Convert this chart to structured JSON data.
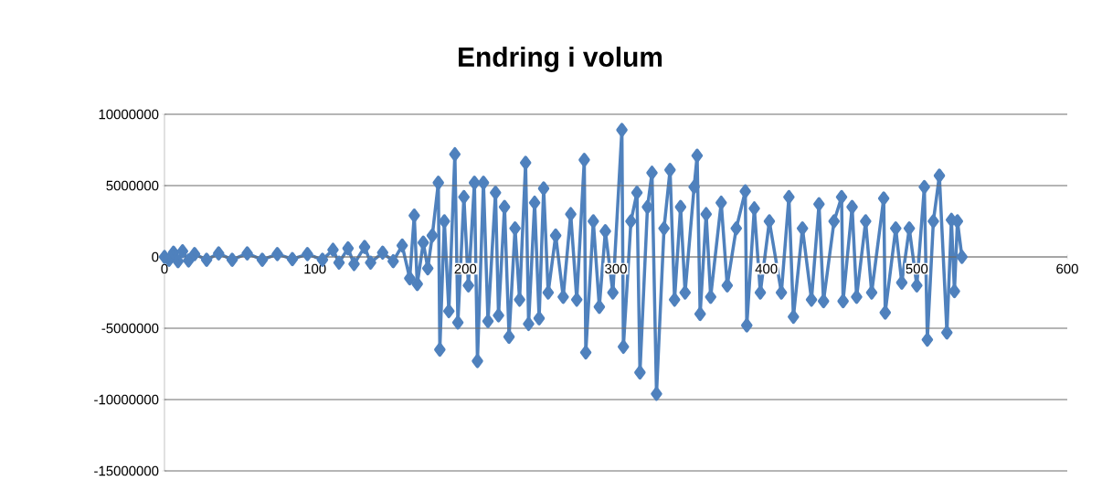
{
  "chart_data": {
    "type": "line",
    "title": "Endring i volum",
    "marker": "diamond",
    "grid": "y",
    "xlim": [
      0,
      600
    ],
    "xticks": [
      0,
      100,
      200,
      300,
      400,
      500,
      600
    ],
    "ylim": [
      -15000000,
      10000000
    ],
    "yticks": [
      -15000000,
      -10000000,
      -5000000,
      0,
      5000000,
      10000000
    ],
    "series": [
      {
        "color": "#4f81bd",
        "x": [
          0,
          3,
          6,
          9,
          12,
          16,
          20,
          28,
          36,
          45,
          55,
          65,
          75,
          85,
          95,
          105,
          112,
          116,
          122,
          126,
          133,
          137,
          145,
          152,
          158,
          163,
          166,
          168,
          172,
          175,
          178,
          182,
          183,
          186,
          189,
          193,
          195,
          199,
          202,
          206,
          208,
          212,
          215,
          220,
          222,
          226,
          229,
          233,
          236,
          240,
          242,
          246,
          249,
          252,
          255,
          260,
          265,
          270,
          274,
          279,
          280,
          285,
          289,
          293,
          298,
          304,
          305,
          310,
          314,
          316,
          321,
          324,
          327,
          332,
          336,
          339,
          343,
          346,
          352,
          354,
          356,
          360,
          363,
          370,
          374,
          380,
          386,
          387,
          392,
          396,
          402,
          410,
          415,
          418,
          424,
          430,
          435,
          438,
          445,
          450,
          451,
          457,
          460,
          466,
          470,
          478,
          479,
          486,
          490,
          495,
          500,
          505,
          507,
          511,
          515,
          520,
          523,
          525,
          527,
          530
        ],
        "values": [
          0,
          -200000,
          300000,
          -300000,
          400000,
          -250000,
          200000,
          -200000,
          250000,
          -200000,
          250000,
          -200000,
          200000,
          -150000,
          200000,
          -200000,
          500000,
          -400000,
          600000,
          -500000,
          700000,
          -400000,
          300000,
          -300000,
          800000,
          -1500000,
          2900000,
          -1900000,
          1000000,
          -800000,
          1500000,
          5200000,
          -6500000,
          2500000,
          -3800000,
          7200000,
          -4600000,
          4200000,
          -2000000,
          5200000,
          -7300000,
          5200000,
          -4500000,
          4500000,
          -4100000,
          3500000,
          -5600000,
          2000000,
          -3000000,
          6600000,
          -4700000,
          3800000,
          -4300000,
          4800000,
          -2500000,
          1500000,
          -2800000,
          3000000,
          -3000000,
          6800000,
          -6700000,
          2500000,
          -3500000,
          1800000,
          -2500000,
          8900000,
          -6300000,
          2500000,
          4500000,
          -8100000,
          3500000,
          5900000,
          -9600000,
          2000000,
          6100000,
          -3000000,
          3500000,
          -2500000,
          4900000,
          7100000,
          -4000000,
          3000000,
          -2800000,
          3800000,
          -2000000,
          2000000,
          4600000,
          -4800000,
          3400000,
          -2500000,
          2500000,
          -2500000,
          4200000,
          -4200000,
          2000000,
          -3000000,
          3700000,
          -3100000,
          2500000,
          4200000,
          -3100000,
          3500000,
          -2800000,
          2500000,
          -2500000,
          4100000,
          -3900000,
          2000000,
          -1800000,
          2000000,
          -2000000,
          4900000,
          -5800000,
          2500000,
          5700000,
          -5300000,
          2600000,
          -2400000,
          2500000,
          0
        ]
      }
    ]
  }
}
